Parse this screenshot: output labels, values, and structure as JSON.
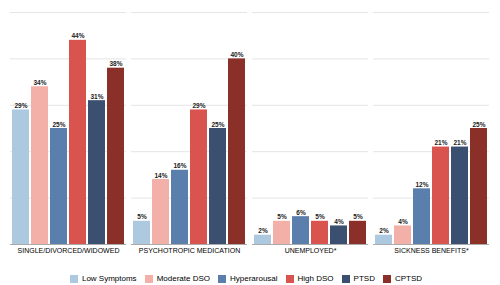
{
  "chart_data": {
    "type": "bar",
    "categories": [
      "SINGLE/DIVORCED/WIDOWED",
      "PSYCHOTROPIC MEDICATION",
      "UNEMPLOYED*",
      "SICKNESS BENEFITS*"
    ],
    "series": [
      {
        "name": "Low Symptoms",
        "color": "#adc9e0",
        "values": [
          29,
          5,
          2,
          2
        ],
        "value_labels": [
          "29%",
          "5%",
          "2%",
          "2%"
        ]
      },
      {
        "name": "Moderate DSO",
        "color": "#f2b0a8",
        "values": [
          34,
          14,
          5,
          4
        ],
        "value_labels": [
          "34%",
          "14%",
          "5%",
          "4%"
        ]
      },
      {
        "name": "Hyperarousal",
        "color": "#5a7fad",
        "values": [
          25,
          16,
          6,
          12
        ],
        "value_labels": [
          "25%",
          "16%",
          "6%",
          "12%"
        ]
      },
      {
        "name": "High DSO",
        "color": "#d9534f",
        "values": [
          44,
          29,
          5,
          21
        ],
        "value_labels": [
          "44%",
          "29%",
          "5%",
          "21%"
        ]
      },
      {
        "name": "PTSD",
        "color": "#3b5070",
        "values": [
          31,
          25,
          4,
          21
        ],
        "value_labels": [
          "31%",
          "25%",
          "4%",
          "21%"
        ]
      },
      {
        "name": "CPTSD",
        "color": "#8b3028",
        "values": [
          38,
          40,
          5,
          25
        ],
        "value_labels": [
          "38%",
          "40%",
          "5%",
          "25%"
        ]
      }
    ],
    "ylim": [
      0,
      50
    ],
    "yticks": [
      0,
      10,
      20,
      30,
      40,
      50
    ],
    "grid": true,
    "data_labels": true,
    "tick_labels": "x",
    "legend": "bottom"
  }
}
